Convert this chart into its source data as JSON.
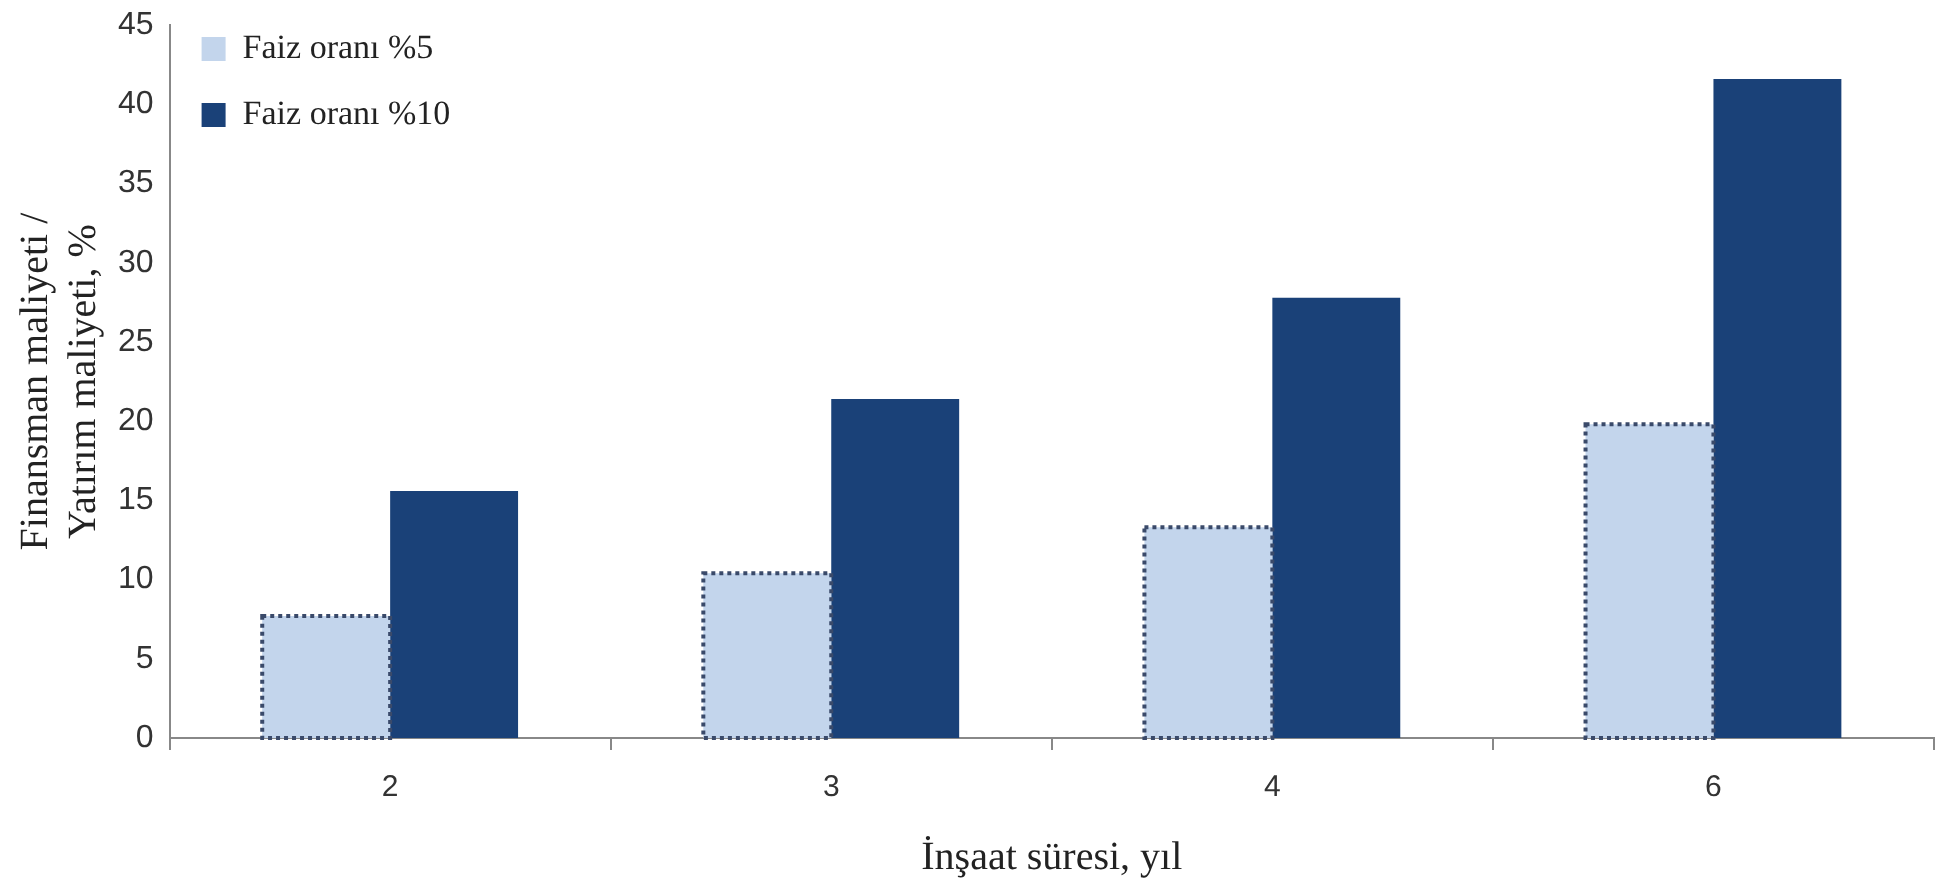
{
  "chart_data": {
    "type": "bar",
    "xlabel": "İnşaat süresi, yıl",
    "ylabel": "Finansman maliyeti / Yatırım maliyeti, %",
    "categories": [
      "2",
      "3",
      "4",
      "6"
    ],
    "series": [
      {
        "name": "Faiz oranı %5",
        "color": "#c3d5ec",
        "values": [
          7.7,
          10.4,
          13.3,
          19.8
        ],
        "line_style": "dotted"
      },
      {
        "name": "Faiz oranı %10",
        "color": "#1a4178",
        "values": [
          15.6,
          21.4,
          27.8,
          41.6
        ]
      }
    ],
    "ylim": [
      0,
      45
    ],
    "yticks": [
      0,
      5,
      10,
      15,
      20,
      25,
      30,
      35,
      40,
      45
    ],
    "grid": false,
    "legend": "top left"
  }
}
